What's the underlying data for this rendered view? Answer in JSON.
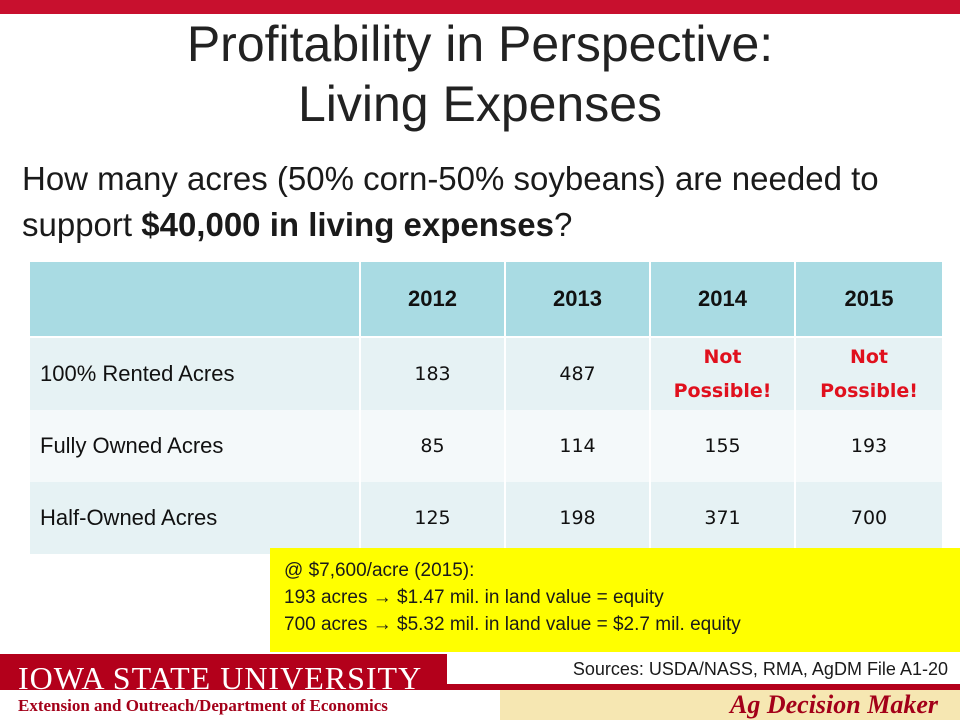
{
  "slide": {
    "title_line1": "Profitability in Perspective:",
    "title_line2": "Living Expenses",
    "question_part1": "How many acres (50% corn-50% soybeans) are needed to support ",
    "question_bold": "$40,000 in living expenses",
    "question_part2": "?"
  },
  "table": {
    "headers": [
      "",
      "2012",
      "2013",
      "2014",
      "2015"
    ],
    "rows": [
      {
        "label": "100% Rented Acres",
        "values": [
          "183",
          "487",
          "Not Possible!",
          "Not Possible!"
        ]
      },
      {
        "label": "Fully Owned Acres",
        "values": [
          "85",
          "114",
          "155",
          "193"
        ]
      },
      {
        "label": "Half-Owned Acres",
        "values": [
          "125",
          "198",
          "371",
          "700"
        ]
      }
    ],
    "not_possible_words": [
      "Not",
      "Possible!"
    ]
  },
  "note": {
    "line1": "@ $7,600/acre (2015):",
    "line2": "193 acres → $1.47 mil. in land value = equity",
    "line3": "700 acres → $5.32 mil. in land value = $2.7 mil. equity"
  },
  "footer": {
    "sources": "Sources: USDA/NASS, RMA, AgDM File A1-20",
    "university": "IOWA STATE UNIVERSITY",
    "extension": "Extension and Outreach/Department of Economics",
    "brand": "Ag Decision Maker"
  },
  "colors": {
    "accent_red": "#c8102e",
    "header_blue": "#a9dbe3",
    "highlight_yellow": "#ffff00",
    "not_possible_red": "#e0101d"
  }
}
